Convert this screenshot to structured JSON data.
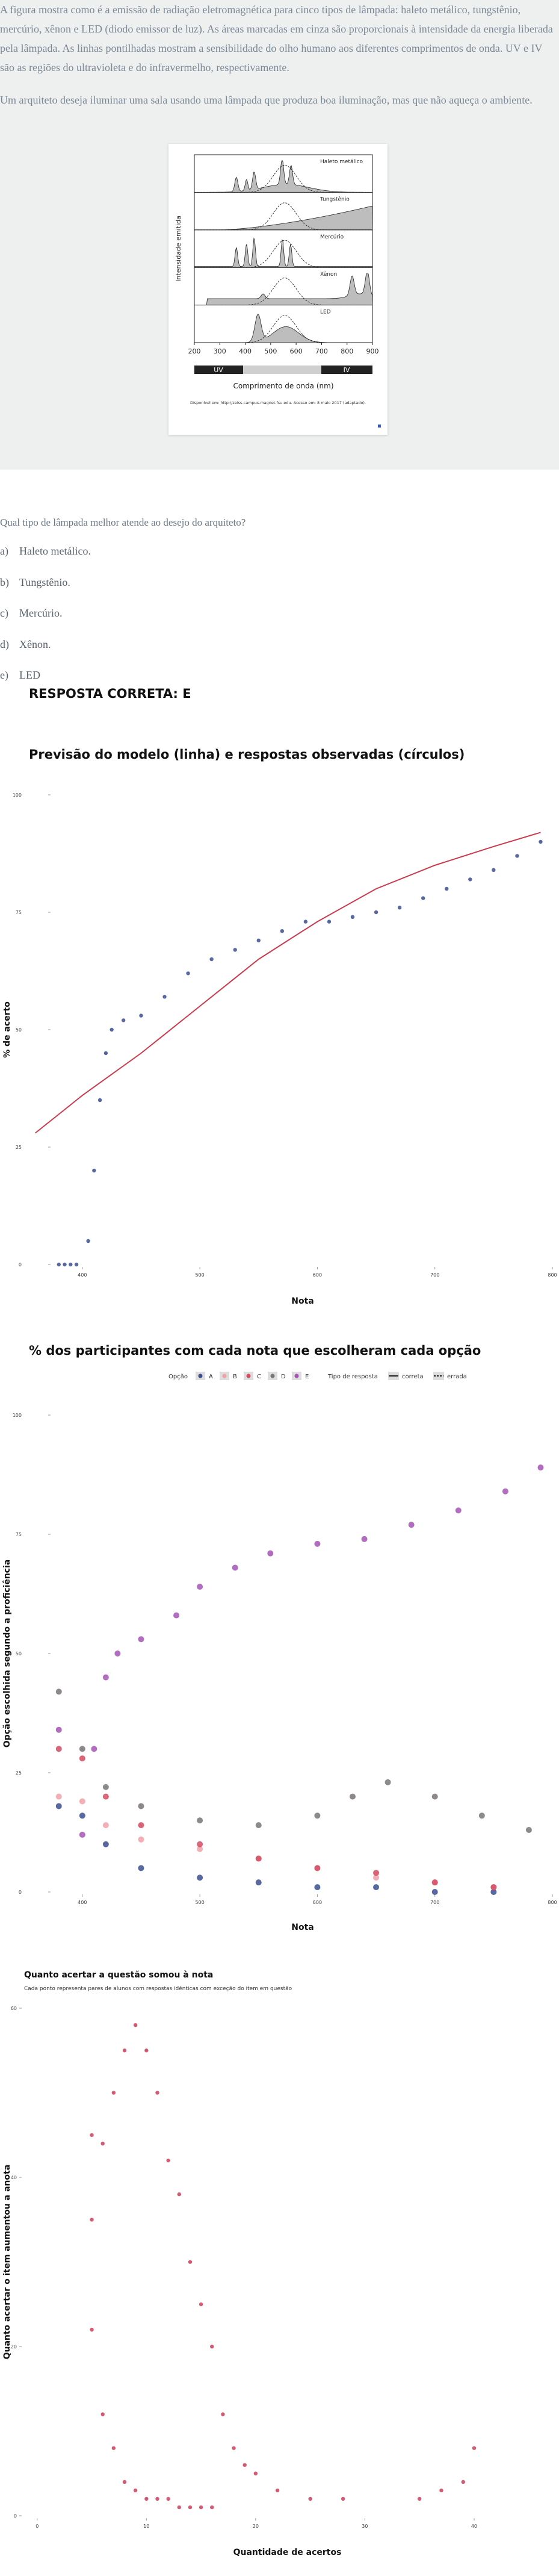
{
  "document": {
    "paragraphs": [
      "A figura mostra como é a emissão de radiação eletromagnética para cinco tipos de lâmpada: haleto metálico, tungstênio, mercúrio, xênon e LED (diodo emissor de luz). As áreas marcadas em cinza são proporcionais à intensidade da energia liberada pela lâmpada. As linhas pontilhadas mostram a sensibilidade do olho humano aos diferentes comprimentos de onda. UV e IV são as regiões do ultravioleta e do infravermelho, respectivamente.",
      "Um arquiteto deseja iluminar uma sala usando uma lâmpada que produza boa iluminação, mas que não aqueça o ambiente."
    ],
    "figure": {
      "panel_labels": [
        "Haleto metálico",
        "Tungstênio",
        "Mercúrio",
        "Xênon",
        "LED"
      ],
      "y_axis_label": "Intensidade emitida",
      "x_ticks": [
        200,
        300,
        400,
        500,
        600,
        700,
        800,
        900
      ],
      "bands": [
        "UV",
        "IV"
      ],
      "x_axis_label": "Comprimento de onda (nm)",
      "source": "Disponível em: http://zeiss-campus.magnet.fsu.edu. Acesso em: 8 maio 2017 (adaptado)."
    },
    "question": "Qual tipo de lâmpada melhor atende ao desejo do arquiteto?",
    "options": [
      {
        "letter": "a)",
        "text": "Haleto metálico."
      },
      {
        "letter": "b)",
        "text": "Tungstênio."
      },
      {
        "letter": "c)",
        "text": "Mercúrio."
      },
      {
        "letter": "d)",
        "text": "Xênon."
      },
      {
        "letter": "e)",
        "text": "LED"
      }
    ],
    "answer": "RESPOSTA CORRETA: E"
  },
  "charts": [
    {
      "type": "scatter",
      "title": "Previsão do modelo (linha) e respostas observadas (círculos)",
      "y_label": "% de acerto",
      "x_label": "Nota",
      "xlim": [
        375,
        800
      ],
      "xticks": [
        400,
        500,
        600,
        700,
        800
      ],
      "ylim": [
        0,
        100
      ],
      "yticks": [
        0,
        25,
        50,
        75,
        100
      ],
      "grid": false,
      "series": [
        {
          "kind": "line",
          "color": "#c93c4f",
          "x": [
            360,
            400,
            450,
            500,
            550,
            600,
            650,
            700,
            750,
            790
          ],
          "values": [
            28,
            36,
            45,
            55,
            65,
            73,
            80,
            85,
            89,
            92
          ]
        },
        {
          "kind": "points",
          "color": "#3b4d8f",
          "x": [
            380,
            385,
            390,
            395,
            405,
            410,
            415,
            420,
            425,
            435,
            450,
            470,
            490,
            510,
            530,
            550,
            570,
            590,
            610,
            630,
            650,
            670,
            690,
            710,
            730,
            750,
            770,
            790
          ],
          "values": [
            0,
            0,
            0,
            0,
            5,
            20,
            35,
            45,
            50,
            52,
            53,
            57,
            62,
            65,
            67,
            69,
            71,
            73,
            73,
            74,
            75,
            76,
            78,
            80,
            82,
            84,
            87,
            90
          ]
        }
      ]
    },
    {
      "type": "scatter",
      "title": "% dos participantes com cada nota que escolheram cada opção",
      "y_label": "Opção escolhida segundo a proficiência",
      "x_label": "Nota",
      "legend_title": "Opção",
      "legend_type_title": "Tipo de resposta",
      "legend_types": [
        "correta",
        "errada"
      ],
      "xlim": [
        375,
        800
      ],
      "xticks": [
        400,
        500,
        600,
        700,
        800
      ],
      "ylim": [
        0,
        100
      ],
      "yticks": [
        0,
        25,
        50,
        75,
        100
      ],
      "grid": false,
      "series": [
        {
          "name": "A",
          "kind": "points",
          "color": "#3b4d8f",
          "x": [
            380,
            400,
            420,
            450,
            500,
            550,
            600,
            650,
            700,
            750
          ],
          "values": [
            18,
            16,
            10,
            5,
            3,
            2,
            1,
            1,
            0,
            0
          ]
        },
        {
          "name": "B",
          "kind": "points",
          "color": "#f2a0a8",
          "x": [
            380,
            400,
            420,
            450,
            500,
            550,
            600,
            650,
            700,
            750
          ],
          "values": [
            20,
            19,
            14,
            11,
            9,
            7,
            5,
            3,
            2,
            1
          ]
        },
        {
          "name": "C",
          "kind": "points",
          "color": "#d44a62",
          "x": [
            380,
            400,
            420,
            450,
            500,
            550,
            600,
            650,
            700,
            750
          ],
          "values": [
            30,
            28,
            20,
            14,
            10,
            7,
            5,
            4,
            2,
            1
          ]
        },
        {
          "name": "D",
          "kind": "points",
          "color": "#7a7676",
          "x": [
            380,
            400,
            420,
            450,
            500,
            550,
            600,
            630,
            660,
            700,
            740,
            780
          ],
          "values": [
            42,
            30,
            22,
            18,
            15,
            14,
            16,
            20,
            23,
            20,
            16,
            13
          ]
        },
        {
          "name": "E",
          "kind": "points",
          "color": "#a653b5",
          "x": [
            380,
            400,
            410,
            420,
            430,
            450,
            480,
            500,
            530,
            560,
            600,
            640,
            680,
            720,
            760,
            790
          ],
          "values": [
            34,
            12,
            30,
            45,
            50,
            53,
            58,
            64,
            68,
            71,
            73,
            74,
            77,
            80,
            84,
            89
          ]
        }
      ]
    },
    {
      "type": "scatter",
      "title": "Quanto acertar a questão somou à nota",
      "subtitle": "Cada ponto representa pares de alunos com respostas idênticas com exceção do item em questão",
      "y_label": "Quanto acertar o item aumentou a anota",
      "x_label": "Quantidade de acertos",
      "xlim": [
        -1.2,
        47
      ],
      "xticks": [
        0,
        10,
        20,
        30,
        40
      ],
      "ylim": [
        0,
        60
      ],
      "yticks": [
        0,
        20,
        40,
        60
      ],
      "grid": false,
      "series": [
        {
          "kind": "points",
          "color": "#cc3d5c",
          "x": [
            5,
            5,
            5,
            6,
            6,
            7,
            7,
            8,
            8,
            9,
            9,
            10,
            10,
            11,
            11,
            12,
            12,
            13,
            13,
            14,
            14,
            15,
            15,
            16,
            16,
            17,
            18,
            19,
            20,
            22,
            25,
            28,
            35,
            37,
            39,
            40
          ],
          "values": [
            22,
            35,
            45,
            12,
            44,
            8,
            50,
            4,
            55,
            3,
            58,
            2,
            55,
            2,
            50,
            2,
            42,
            1,
            38,
            1,
            30,
            1,
            25,
            1,
            20,
            12,
            8,
            6,
            5,
            3,
            2,
            2,
            2,
            3,
            4,
            8
          ]
        }
      ]
    }
  ]
}
